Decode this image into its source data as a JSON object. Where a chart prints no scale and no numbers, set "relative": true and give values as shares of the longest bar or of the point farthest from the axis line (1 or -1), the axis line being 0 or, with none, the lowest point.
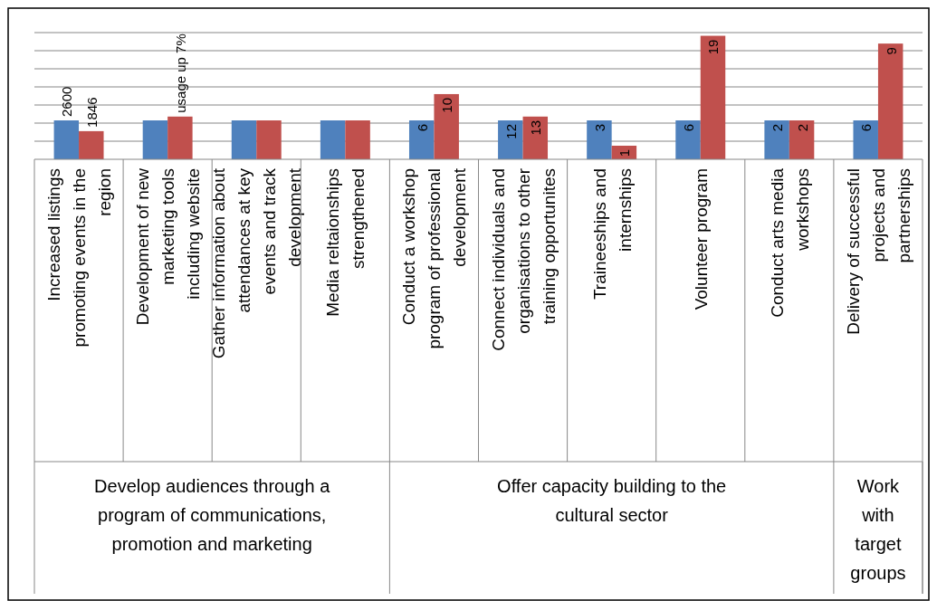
{
  "chart_data": {
    "type": "bar",
    "relative": true,
    "grid": true,
    "categories": [
      "Increased listings promoting events in the region",
      "Development of new marketing tools including website",
      "Gather information about attendances at key events and track development",
      "Media reltaionships strengthened",
      "Conduct a workshop program of professional development",
      "Connect individuals and organisations to other training opportunites",
      "Traineeships and internships",
      "Volunteer program",
      "Conduct arts media workshops",
      "Delivery of successful projects and partnerships"
    ],
    "series": [
      {
        "color": "#4f81bd",
        "values": [
          0.315,
          0.315,
          0.315,
          0.315,
          0.315,
          0.315,
          0.315,
          0.315,
          0.315,
          0.315
        ]
      },
      {
        "color": "#c0504d",
        "values": [
          0.228,
          0.346,
          0.315,
          0.315,
          0.528,
          0.346,
          0.11,
          1,
          0.315,
          0.937
        ]
      }
    ],
    "annotations": [
      "Develop audiences through a program of communications, promotion and marketing",
      "Offer capacity building to the cultural sector",
      "Work with target groups",
      {
        "text": "2600",
        "x": "Increased listings promoting events in the region",
        "y": 0.315
      },
      {
        "text": "1846",
        "x": "Increased listings promoting events in the region",
        "y": 0.228
      },
      {
        "text": "usage up 7%",
        "x": "Development of new marketing tools including website",
        "y": 0.346
      },
      {
        "text": "6",
        "x": "Conduct a workshop program of professional development",
        "y": 0.315
      },
      {
        "text": "10",
        "x": "Conduct a workshop program of professional development",
        "y": 0.528
      },
      {
        "text": "12",
        "x": "Connect individuals and organisations to other training opportunites",
        "y": 0.315
      },
      {
        "text": "13",
        "x": "Connect individuals and organisations to other training opportunites",
        "y": 0.346
      },
      {
        "text": "3",
        "x": "Traineeships and internships",
        "y": 0.315
      },
      {
        "text": "1",
        "x": "Traineeships and internships",
        "y": 0.11
      },
      {
        "text": "6",
        "x": "Volunteer program",
        "y": 0.315
      },
      {
        "text": "19",
        "x": "Volunteer program",
        "y": 1
      },
      {
        "text": "2",
        "x": "Conduct arts media workshops",
        "y": 0.315
      },
      {
        "text": "2",
        "x": "Conduct arts media workshops",
        "y": 0.315
      },
      {
        "text": "6",
        "x": "Delivery of successful projects and partnerships",
        "y": 0.315
      },
      {
        "text": "9",
        "x": "Delivery of successful projects and partnerships",
        "y": 0.937
      }
    ]
  }
}
